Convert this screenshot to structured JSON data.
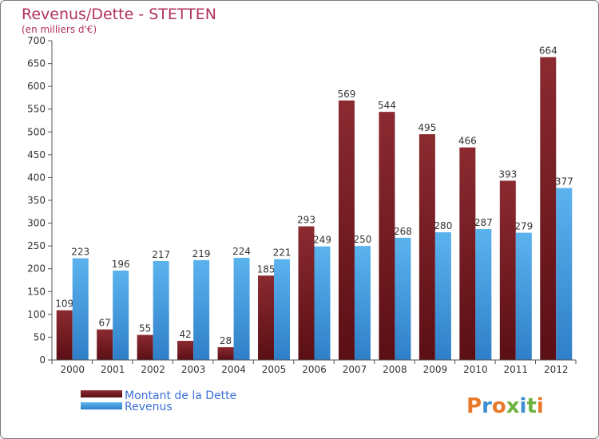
{
  "chart_data": {
    "type": "bar",
    "title": "Revenus/Dette - STETTEN",
    "subtitle": "(en milliers d'€)",
    "categories": [
      "2000",
      "2001",
      "2002",
      "2003",
      "2004",
      "2005",
      "2006",
      "2007",
      "2008",
      "2009",
      "2010",
      "2011",
      "2012"
    ],
    "series": [
      {
        "name": "Montant de la Dette",
        "color": "#7a1f25",
        "values": [
          109,
          67,
          55,
          42,
          28,
          185,
          293,
          569,
          544,
          495,
          466,
          393,
          664
        ]
      },
      {
        "name": "Revenus",
        "color": "#4aa3e6",
        "values": [
          223,
          196,
          217,
          219,
          224,
          221,
          249,
          250,
          268,
          280,
          287,
          279,
          377
        ]
      }
    ],
    "ylim": [
      0,
      700
    ],
    "yticks": [
      0,
      50,
      100,
      150,
      200,
      250,
      300,
      350,
      400,
      450,
      500,
      550,
      600,
      650,
      700
    ],
    "grid": false,
    "legend_position": "bottom-left"
  },
  "logo": {
    "text": "Proxiti",
    "letter_colors": [
      "#e9792a",
      "#3d8fd1",
      "#e9792a",
      "#6cb33f",
      "#3d8fd1",
      "#6cb33f",
      "#e9792a"
    ]
  }
}
